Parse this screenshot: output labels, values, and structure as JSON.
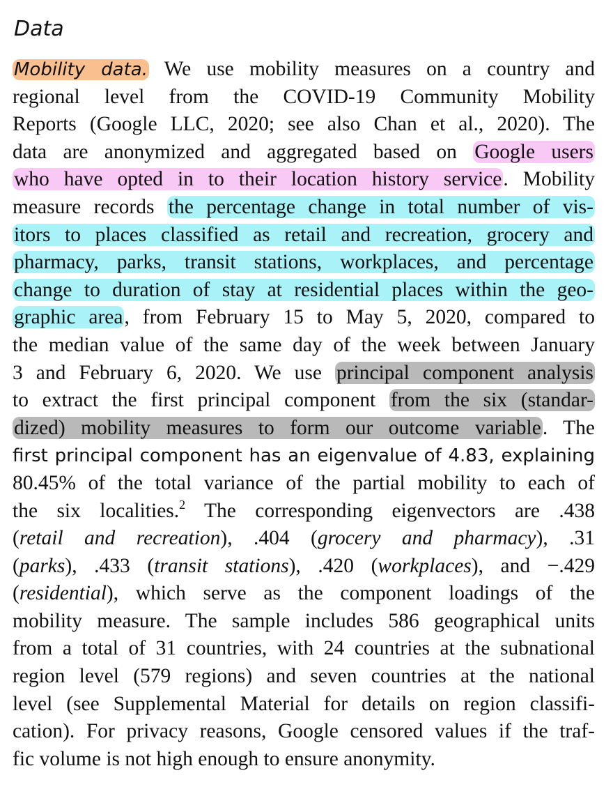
{
  "heading": "Data",
  "paragraph": {
    "lead_label": "Mobility data.",
    "lines": [
      {
        "t": [
          {
            "hl": "orange",
            "font": "sans-italic",
            "text": "Mobility data."
          },
          {
            "text": " We use mobility measures on a country and"
          }
        ]
      },
      {
        "t": [
          {
            "text": "regional level from the COVID-19 Community Mobility"
          }
        ]
      },
      {
        "t": [
          {
            "text": "Reports (Google LLC, 2020; see also Chan et al., 2020). The"
          }
        ]
      },
      {
        "t": [
          {
            "text": "data are anonymized and aggregated based on "
          },
          {
            "hl": "pink",
            "text": "Google users"
          }
        ]
      },
      {
        "t": [
          {
            "hl": "pink",
            "text": "who have opted in to their location history service"
          },
          {
            "text": ". Mobility"
          }
        ]
      },
      {
        "t": [
          {
            "text": "measure records "
          },
          {
            "hl": "cyan",
            "text": "the percentage change in total number of vis-"
          }
        ]
      },
      {
        "t": [
          {
            "hl": "cyan",
            "text": "itors to places classified as retail and recreation, grocery and"
          }
        ]
      },
      {
        "t": [
          {
            "hl": "cyan",
            "text": "pharmacy, parks, transit stations, workplaces, and percentage"
          }
        ]
      },
      {
        "t": [
          {
            "hl": "cyan",
            "text": "change to duration of stay at residential places within the geo-"
          }
        ]
      },
      {
        "t": [
          {
            "hl": "cyan",
            "text": "graphic area"
          },
          {
            "text": ", from February 15 to May 5, 2020, compared to"
          }
        ]
      },
      {
        "t": [
          {
            "text": "the median value of the same day of the week between January"
          }
        ]
      },
      {
        "t": [
          {
            "text": "3 and February 6, 2020. We use "
          },
          {
            "hl": "gray",
            "text": "principal component analysis"
          }
        ]
      },
      {
        "t": [
          {
            "text": "to extract the first principal component "
          },
          {
            "hl": "gray",
            "text": "from the six (standar-"
          }
        ]
      },
      {
        "t": [
          {
            "hl": "gray",
            "text": "dized) mobility measures to form our outcome variable"
          },
          {
            "text": ". The"
          }
        ]
      },
      {
        "t": [
          {
            "font": "sans",
            "text": "first principal component has an eigenvalue of 4.83, explaining"
          }
        ]
      },
      {
        "t": [
          {
            "text": "80.45% of the total variance of the partial mobility to each of"
          }
        ]
      },
      {
        "t": [
          {
            "text": "the six localities."
          },
          {
            "sup": true,
            "text": "2"
          },
          {
            "text": " The corresponding eigenvectors are .438"
          }
        ]
      },
      {
        "t": [
          {
            "text": "("
          },
          {
            "italic": true,
            "text": "retail and recreation"
          },
          {
            "text": "), .404 ("
          },
          {
            "italic": true,
            "text": "grocery and pharmacy"
          },
          {
            "text": "), .31"
          }
        ]
      },
      {
        "t": [
          {
            "text": "("
          },
          {
            "italic": true,
            "text": "parks"
          },
          {
            "text": "), .433 ("
          },
          {
            "italic": true,
            "text": "transit stations"
          },
          {
            "text": "), .420 ("
          },
          {
            "italic": true,
            "text": "workplaces"
          },
          {
            "text": "), and −.429"
          }
        ]
      },
      {
        "t": [
          {
            "text": "("
          },
          {
            "italic": true,
            "text": "residential"
          },
          {
            "text": "), which serve as the component loadings of the"
          }
        ]
      },
      {
        "t": [
          {
            "text": "mobility measure. The sample includes 586 geographical units"
          }
        ]
      },
      {
        "t": [
          {
            "text": "from a total of 31 countries, with 24 countries at the subnational"
          }
        ]
      },
      {
        "t": [
          {
            "text": "region level (579 regions) and seven countries at the national"
          }
        ]
      },
      {
        "t": [
          {
            "text": "level (see Supplemental Material for details on region classifi-"
          }
        ]
      },
      {
        "t": [
          {
            "text": "cation). For privacy reasons, Google censored values if the traf-"
          }
        ]
      },
      {
        "t": [
          {
            "text": "fic volume is not high enough to ensure anonymity."
          }
        ],
        "last": true
      }
    ]
  },
  "colors": {
    "orange_highlight": "#f9bf8f",
    "pink_highlight": "#f9c9f5",
    "cyan_highlight": "#a9f2f8",
    "gray_highlight": "#b9b9b9",
    "text": "#111111"
  }
}
